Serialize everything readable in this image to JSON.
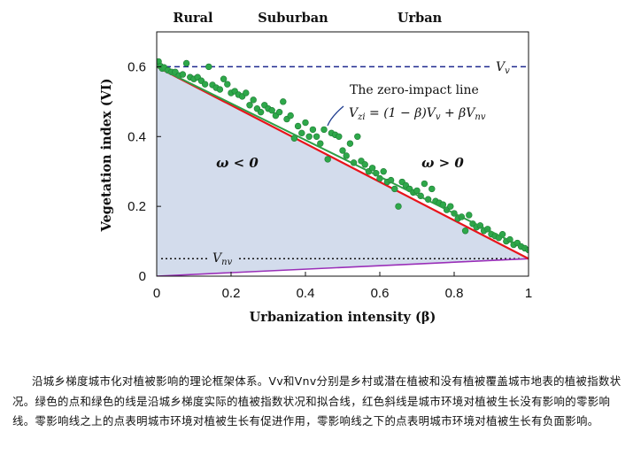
{
  "chart_data": {
    "type": "scatter",
    "xlabel": "Urbanization intensity (β)",
    "ylabel": "Vegetation index (VI)",
    "xlim": [
      0,
      1
    ],
    "ylim": [
      0,
      0.7
    ],
    "x_ticks": [
      "0",
      "0.2",
      "0.4",
      "0.6",
      "0.8",
      "1"
    ],
    "y_ticks": [
      "0",
      "0.2",
      "0.4",
      "0.6"
    ],
    "zones": [
      "Rural",
      "Suburban",
      "Urban"
    ],
    "Vv": 0.6,
    "Vnv": 0.05,
    "reference_lines": [
      {
        "label": "Vv",
        "y": 0.6,
        "color": "#1f2a8f",
        "style": "dashed"
      },
      {
        "label": "Vnv",
        "y": 0.05,
        "color": "#111111",
        "style": "dotted"
      }
    ],
    "zero_impact_line": {
      "label": "The zero-impact  line",
      "formula": "V_zi = (1 − β)V_v + βV_nv",
      "color": "#e8141c"
    },
    "purple_line": {
      "from": [
        0,
        0
      ],
      "to": [
        1,
        0.05
      ],
      "color": "#9a2fb8"
    },
    "fit_line": {
      "from": [
        0,
        0.6
      ],
      "to": [
        1,
        0.075
      ],
      "color": "#2e9e46"
    },
    "region_labels": [
      {
        "text": "ω < 0",
        "x": 0.22,
        "y": 0.33
      },
      {
        "text": "ω > 0",
        "x": 0.77,
        "y": 0.33
      }
    ],
    "points": [
      [
        0.005,
        0.615
      ],
      [
        0.01,
        0.602
      ],
      [
        0.015,
        0.595
      ],
      [
        0.02,
        0.598
      ],
      [
        0.03,
        0.59
      ],
      [
        0.04,
        0.585
      ],
      [
        0.05,
        0.585
      ],
      [
        0.06,
        0.575
      ],
      [
        0.07,
        0.578
      ],
      [
        0.08,
        0.61
      ],
      [
        0.09,
        0.57
      ],
      [
        0.1,
        0.565
      ],
      [
        0.11,
        0.57
      ],
      [
        0.12,
        0.56
      ],
      [
        0.13,
        0.55
      ],
      [
        0.14,
        0.6
      ],
      [
        0.15,
        0.548
      ],
      [
        0.16,
        0.54
      ],
      [
        0.17,
        0.535
      ],
      [
        0.18,
        0.565
      ],
      [
        0.19,
        0.55
      ],
      [
        0.2,
        0.525
      ],
      [
        0.21,
        0.53
      ],
      [
        0.22,
        0.52
      ],
      [
        0.23,
        0.515
      ],
      [
        0.24,
        0.525
      ],
      [
        0.25,
        0.49
      ],
      [
        0.26,
        0.505
      ],
      [
        0.27,
        0.48
      ],
      [
        0.28,
        0.47
      ],
      [
        0.29,
        0.49
      ],
      [
        0.3,
        0.48
      ],
      [
        0.31,
        0.475
      ],
      [
        0.32,
        0.46
      ],
      [
        0.33,
        0.47
      ],
      [
        0.34,
        0.5
      ],
      [
        0.35,
        0.45
      ],
      [
        0.36,
        0.46
      ],
      [
        0.37,
        0.395
      ],
      [
        0.38,
        0.43
      ],
      [
        0.39,
        0.41
      ],
      [
        0.4,
        0.44
      ],
      [
        0.41,
        0.4
      ],
      [
        0.42,
        0.42
      ],
      [
        0.43,
        0.4
      ],
      [
        0.44,
        0.38
      ],
      [
        0.45,
        0.42
      ],
      [
        0.46,
        0.335
      ],
      [
        0.47,
        0.41
      ],
      [
        0.48,
        0.405
      ],
      [
        0.49,
        0.4
      ],
      [
        0.5,
        0.36
      ],
      [
        0.51,
        0.345
      ],
      [
        0.52,
        0.38
      ],
      [
        0.53,
        0.325
      ],
      [
        0.54,
        0.4
      ],
      [
        0.55,
        0.33
      ],
      [
        0.56,
        0.32
      ],
      [
        0.57,
        0.3
      ],
      [
        0.58,
        0.31
      ],
      [
        0.59,
        0.295
      ],
      [
        0.6,
        0.28
      ],
      [
        0.61,
        0.3
      ],
      [
        0.62,
        0.27
      ],
      [
        0.63,
        0.275
      ],
      [
        0.64,
        0.25
      ],
      [
        0.65,
        0.2
      ],
      [
        0.66,
        0.27
      ],
      [
        0.67,
        0.26
      ],
      [
        0.68,
        0.25
      ],
      [
        0.69,
        0.24
      ],
      [
        0.7,
        0.245
      ],
      [
        0.71,
        0.23
      ],
      [
        0.72,
        0.265
      ],
      [
        0.73,
        0.22
      ],
      [
        0.74,
        0.25
      ],
      [
        0.75,
        0.215
      ],
      [
        0.76,
        0.21
      ],
      [
        0.77,
        0.205
      ],
      [
        0.78,
        0.19
      ],
      [
        0.79,
        0.2
      ],
      [
        0.8,
        0.18
      ],
      [
        0.81,
        0.165
      ],
      [
        0.82,
        0.17
      ],
      [
        0.83,
        0.13
      ],
      [
        0.84,
        0.175
      ],
      [
        0.85,
        0.15
      ],
      [
        0.86,
        0.14
      ],
      [
        0.87,
        0.145
      ],
      [
        0.88,
        0.13
      ],
      [
        0.89,
        0.135
      ],
      [
        0.9,
        0.12
      ],
      [
        0.91,
        0.115
      ],
      [
        0.92,
        0.11
      ],
      [
        0.93,
        0.12
      ],
      [
        0.94,
        0.1
      ],
      [
        0.95,
        0.105
      ],
      [
        0.96,
        0.09
      ],
      [
        0.97,
        0.095
      ],
      [
        0.98,
        0.085
      ],
      [
        0.99,
        0.08
      ],
      [
        1.0,
        0.075
      ]
    ],
    "colors": {
      "shade": "#d3dcec",
      "points": "#2ea84a",
      "point_edge": "#1e7a34"
    }
  },
  "caption": "沿城乡梯度城市化对植被影响的理论框架体系。Vv和Vnv分别是乡村或潜在植被和没有植被覆盖城市地表的植被指数状况。绿色的点和绿色的线是沿城乡梯度实际的植被指数状况和拟合线，红色斜线是城市环境对植被生长没有影响的零影响线。零影响线之上的点表明城市环境对植被生长有促进作用，零影响线之下的点表明城市环境对植被生长有负面影响。"
}
